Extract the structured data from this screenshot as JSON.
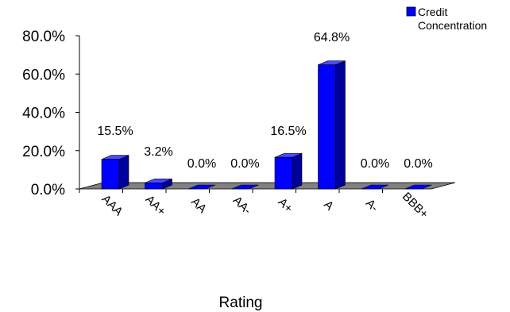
{
  "chart_data": {
    "type": "bar",
    "title": "",
    "xlabel": "Rating",
    "ylabel": "",
    "ylim": [
      0,
      80
    ],
    "yticks": [
      "0.0%",
      "20.0%",
      "40.0%",
      "60.0%",
      "80.0%"
    ],
    "categories": [
      "AAA",
      "AA+",
      "AA",
      "AA-",
      "A+",
      "A",
      "A-",
      "BBB+"
    ],
    "series": [
      {
        "name": "Credit Concentration",
        "values": [
          15.5,
          3.2,
          0.0,
          0.0,
          16.5,
          64.8,
          0.0,
          0.0
        ],
        "labels": [
          "15.5%",
          "3.2%",
          "0.0%",
          "0.0%",
          "16.5%",
          "64.8%",
          "0.0%",
          "0.0%"
        ]
      }
    ],
    "legend": {
      "position": "top-right",
      "label_lines": [
        "Credit",
        "Concentration"
      ]
    },
    "grid": false,
    "colors": {
      "bar_front": "#0000ff",
      "bar_side": "#00009a",
      "bar_top": "#4b4bff",
      "floor": "#808080"
    }
  }
}
